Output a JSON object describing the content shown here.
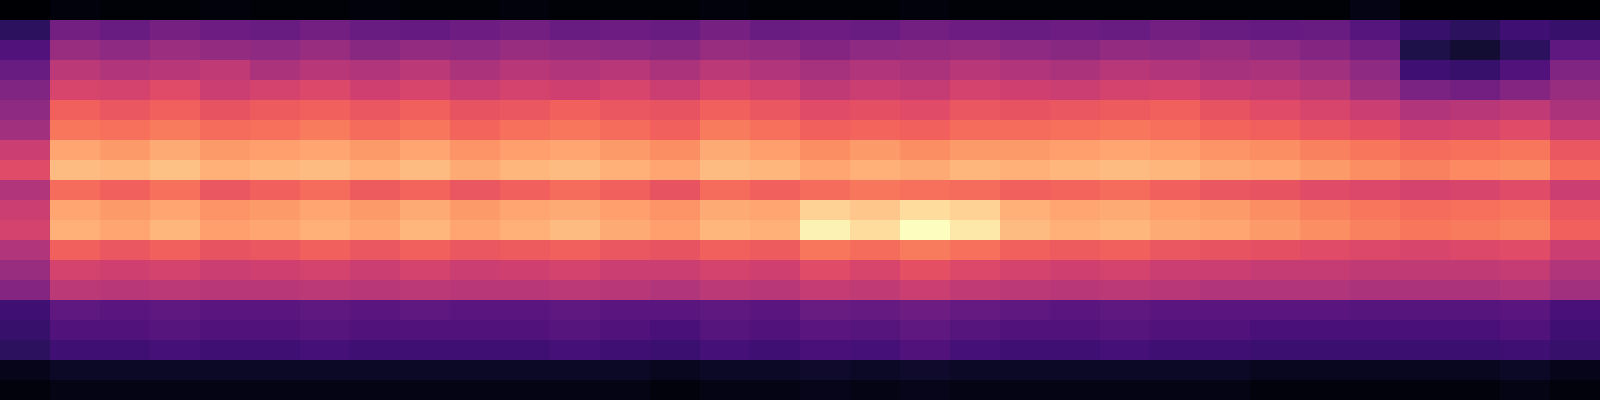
{
  "chart_data": {
    "type": "heatmap",
    "color": "magma",
    "tick_labels": false,
    "cells": [
      [
        0.04,
        0.06,
        0.05,
        0.05,
        0.06,
        0.05,
        0.05,
        0.06,
        0.05,
        0.05,
        0.06,
        0.05,
        0.05,
        0.05,
        0.06,
        0.05,
        0.05,
        0.05,
        0.06,
        0.05,
        0.05,
        0.05,
        0.05,
        0.05,
        0.05,
        0.05,
        0.05,
        0.07,
        0.04,
        0.04,
        0.04,
        0.04
      ],
      [
        0.18,
        0.32,
        0.3,
        0.33,
        0.31,
        0.3,
        0.32,
        0.3,
        0.29,
        0.31,
        0.32,
        0.3,
        0.31,
        0.3,
        0.33,
        0.3,
        0.31,
        0.3,
        0.32,
        0.31,
        0.3,
        0.31,
        0.3,
        0.32,
        0.3,
        0.29,
        0.3,
        0.26,
        0.2,
        0.18,
        0.22,
        0.2
      ],
      [
        0.25,
        0.4,
        0.38,
        0.41,
        0.39,
        0.38,
        0.4,
        0.37,
        0.39,
        0.38,
        0.4,
        0.39,
        0.38,
        0.37,
        0.4,
        0.39,
        0.36,
        0.38,
        0.39,
        0.4,
        0.38,
        0.37,
        0.39,
        0.38,
        0.4,
        0.38,
        0.36,
        0.32,
        0.15,
        0.12,
        0.18,
        0.28
      ],
      [
        0.3,
        0.47,
        0.45,
        0.46,
        0.48,
        0.44,
        0.46,
        0.45,
        0.47,
        0.44,
        0.46,
        0.45,
        0.46,
        0.44,
        0.47,
        0.45,
        0.43,
        0.45,
        0.44,
        0.46,
        0.45,
        0.44,
        0.46,
        0.45,
        0.43,
        0.44,
        0.42,
        0.38,
        0.22,
        0.2,
        0.25,
        0.35
      ],
      [
        0.35,
        0.53,
        0.52,
        0.55,
        0.5,
        0.52,
        0.54,
        0.51,
        0.53,
        0.5,
        0.52,
        0.51,
        0.53,
        0.5,
        0.54,
        0.52,
        0.48,
        0.5,
        0.49,
        0.52,
        0.51,
        0.5,
        0.52,
        0.53,
        0.5,
        0.49,
        0.47,
        0.42,
        0.34,
        0.32,
        0.36,
        0.4
      ],
      [
        0.38,
        0.6,
        0.58,
        0.6,
        0.57,
        0.59,
        0.6,
        0.58,
        0.6,
        0.57,
        0.58,
        0.6,
        0.58,
        0.57,
        0.6,
        0.58,
        0.55,
        0.56,
        0.55,
        0.58,
        0.57,
        0.58,
        0.59,
        0.6,
        0.57,
        0.55,
        0.53,
        0.5,
        0.45,
        0.46,
        0.48,
        0.44
      ],
      [
        0.42,
        0.64,
        0.63,
        0.65,
        0.62,
        0.63,
        0.65,
        0.62,
        0.64,
        0.61,
        0.63,
        0.64,
        0.62,
        0.6,
        0.65,
        0.63,
        0.6,
        0.61,
        0.6,
        0.62,
        0.62,
        0.63,
        0.64,
        0.63,
        0.61,
        0.6,
        0.58,
        0.56,
        0.52,
        0.53,
        0.55,
        0.5
      ],
      [
        0.5,
        0.72,
        0.7,
        0.73,
        0.7,
        0.71,
        0.72,
        0.7,
        0.72,
        0.69,
        0.71,
        0.72,
        0.7,
        0.68,
        0.73,
        0.71,
        0.68,
        0.7,
        0.68,
        0.7,
        0.7,
        0.71,
        0.72,
        0.71,
        0.69,
        0.68,
        0.66,
        0.64,
        0.62,
        0.63,
        0.64,
        0.58
      ],
      [
        0.55,
        0.76,
        0.75,
        0.77,
        0.74,
        0.75,
        0.76,
        0.74,
        0.76,
        0.73,
        0.75,
        0.76,
        0.74,
        0.72,
        0.76,
        0.75,
        0.72,
        0.74,
        0.73,
        0.75,
        0.74,
        0.75,
        0.76,
        0.75,
        0.73,
        0.72,
        0.7,
        0.68,
        0.66,
        0.67,
        0.68,
        0.62
      ],
      [
        0.45,
        0.62,
        0.6,
        0.63,
        0.58,
        0.6,
        0.62,
        0.59,
        0.61,
        0.58,
        0.6,
        0.62,
        0.6,
        0.57,
        0.62,
        0.6,
        0.62,
        0.64,
        0.63,
        0.62,
        0.6,
        0.61,
        0.62,
        0.6,
        0.58,
        0.57,
        0.55,
        0.54,
        0.52,
        0.53,
        0.55,
        0.5
      ],
      [
        0.5,
        0.72,
        0.7,
        0.72,
        0.69,
        0.7,
        0.72,
        0.7,
        0.73,
        0.7,
        0.72,
        0.73,
        0.71,
        0.69,
        0.73,
        0.72,
        0.8,
        0.78,
        0.82,
        0.8,
        0.74,
        0.72,
        0.73,
        0.71,
        0.7,
        0.68,
        0.66,
        0.64,
        0.62,
        0.63,
        0.64,
        0.58
      ],
      [
        0.52,
        0.74,
        0.72,
        0.75,
        0.71,
        0.72,
        0.74,
        0.72,
        0.75,
        0.72,
        0.74,
        0.76,
        0.73,
        0.71,
        0.75,
        0.74,
        0.86,
        0.82,
        0.88,
        0.84,
        0.76,
        0.74,
        0.75,
        0.73,
        0.72,
        0.7,
        0.68,
        0.66,
        0.64,
        0.65,
        0.66,
        0.6
      ],
      [
        0.45,
        0.6,
        0.58,
        0.6,
        0.57,
        0.58,
        0.6,
        0.58,
        0.6,
        0.58,
        0.59,
        0.6,
        0.58,
        0.57,
        0.6,
        0.59,
        0.64,
        0.62,
        0.65,
        0.63,
        0.6,
        0.59,
        0.6,
        0.58,
        0.57,
        0.56,
        0.55,
        0.54,
        0.53,
        0.54,
        0.55,
        0.5
      ],
      [
        0.4,
        0.52,
        0.51,
        0.52,
        0.5,
        0.51,
        0.52,
        0.5,
        0.52,
        0.5,
        0.51,
        0.52,
        0.5,
        0.5,
        0.52,
        0.51,
        0.55,
        0.53,
        0.56,
        0.54,
        0.52,
        0.51,
        0.52,
        0.5,
        0.5,
        0.49,
        0.49,
        0.48,
        0.48,
        0.48,
        0.49,
        0.45
      ],
      [
        0.36,
        0.47,
        0.46,
        0.47,
        0.46,
        0.46,
        0.47,
        0.46,
        0.47,
        0.46,
        0.46,
        0.47,
        0.46,
        0.45,
        0.47,
        0.46,
        0.49,
        0.48,
        0.5,
        0.48,
        0.47,
        0.46,
        0.47,
        0.46,
        0.45,
        0.45,
        0.45,
        0.44,
        0.44,
        0.44,
        0.45,
        0.42
      ],
      [
        0.22,
        0.28,
        0.27,
        0.28,
        0.27,
        0.27,
        0.28,
        0.27,
        0.28,
        0.27,
        0.27,
        0.28,
        0.27,
        0.27,
        0.28,
        0.27,
        0.3,
        0.29,
        0.31,
        0.29,
        0.28,
        0.27,
        0.28,
        0.27,
        0.27,
        0.27,
        0.27,
        0.26,
        0.26,
        0.26,
        0.27,
        0.24
      ],
      [
        0.2,
        0.25,
        0.25,
        0.26,
        0.25,
        0.25,
        0.26,
        0.25,
        0.25,
        0.25,
        0.25,
        0.26,
        0.25,
        0.24,
        0.26,
        0.25,
        0.27,
        0.26,
        0.28,
        0.26,
        0.25,
        0.25,
        0.26,
        0.25,
        0.25,
        0.24,
        0.24,
        0.24,
        0.24,
        0.24,
        0.25,
        0.22
      ],
      [
        0.18,
        0.22,
        0.22,
        0.23,
        0.22,
        0.22,
        0.23,
        0.22,
        0.22,
        0.22,
        0.22,
        0.23,
        0.22,
        0.21,
        0.23,
        0.22,
        0.24,
        0.23,
        0.25,
        0.23,
        0.22,
        0.22,
        0.23,
        0.22,
        0.22,
        0.21,
        0.21,
        0.21,
        0.21,
        0.21,
        0.22,
        0.2
      ],
      [
        0.08,
        0.1,
        0.1,
        0.1,
        0.1,
        0.1,
        0.1,
        0.1,
        0.1,
        0.1,
        0.1,
        0.1,
        0.1,
        0.09,
        0.1,
        0.1,
        0.11,
        0.1,
        0.11,
        0.1,
        0.1,
        0.1,
        0.1,
        0.1,
        0.1,
        0.09,
        0.09,
        0.09,
        0.09,
        0.09,
        0.1,
        0.08
      ],
      [
        0.06,
        0.07,
        0.07,
        0.07,
        0.07,
        0.07,
        0.07,
        0.07,
        0.07,
        0.07,
        0.07,
        0.07,
        0.07,
        0.06,
        0.07,
        0.07,
        0.08,
        0.07,
        0.08,
        0.07,
        0.07,
        0.07,
        0.07,
        0.07,
        0.07,
        0.06,
        0.06,
        0.06,
        0.06,
        0.06,
        0.07,
        0.06
      ]
    ]
  }
}
